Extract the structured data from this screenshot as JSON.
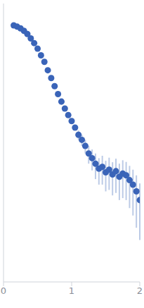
{
  "chart_data": {
    "type": "scatter",
    "x": [
      0.15,
      0.2,
      0.25,
      0.3,
      0.35,
      0.4,
      0.45,
      0.5,
      0.55,
      0.6,
      0.65,
      0.7,
      0.75,
      0.8,
      0.85,
      0.9,
      0.95,
      1.0,
      1.05,
      1.1,
      1.15,
      1.2,
      1.25,
      1.3,
      1.35,
      1.4,
      1.45,
      1.5,
      1.55,
      1.6,
      1.65,
      1.7,
      1.75,
      1.8,
      1.85,
      1.9,
      1.95,
      2.0
    ],
    "values": [
      0.97,
      0.93,
      0.88,
      0.81,
      0.73,
      0.63,
      0.54,
      0.45,
      0.36,
      0.29,
      0.22,
      0.17,
      0.13,
      0.1,
      0.078,
      0.062,
      0.05,
      0.041,
      0.033,
      0.026,
      0.022,
      0.018,
      0.014,
      0.012,
      0.01,
      0.0085,
      0.009,
      0.0075,
      0.0082,
      0.007,
      0.0078,
      0.0065,
      0.0072,
      0.0068,
      0.0058,
      0.005,
      0.004,
      0.003
    ],
    "error": [
      0.02,
      0.02,
      0.02,
      0.02,
      0.02,
      0.015,
      0.012,
      0.01,
      0.008,
      0.007,
      0.005,
      0.004,
      0.003,
      0.003,
      0.003,
      0.003,
      0.003,
      0.003,
      0.003,
      0.004,
      0.004,
      0.004,
      0.004,
      0.004,
      0.004,
      0.0035,
      0.004,
      0.0035,
      0.004,
      0.0035,
      0.004,
      0.0035,
      0.004,
      0.0038,
      0.0035,
      0.0032,
      0.0028,
      0.0022
    ],
    "color": "#3a64b8",
    "marker": "circle",
    "xlim": [
      0,
      2
    ],
    "xticks": [
      0,
      1,
      2
    ],
    "ylim": [
      0.0002,
      2
    ],
    "yticks": [
      0.001,
      0.01,
      0.1,
      1
    ],
    "log": "y",
    "tick_labels": "x",
    "grid": false
  }
}
